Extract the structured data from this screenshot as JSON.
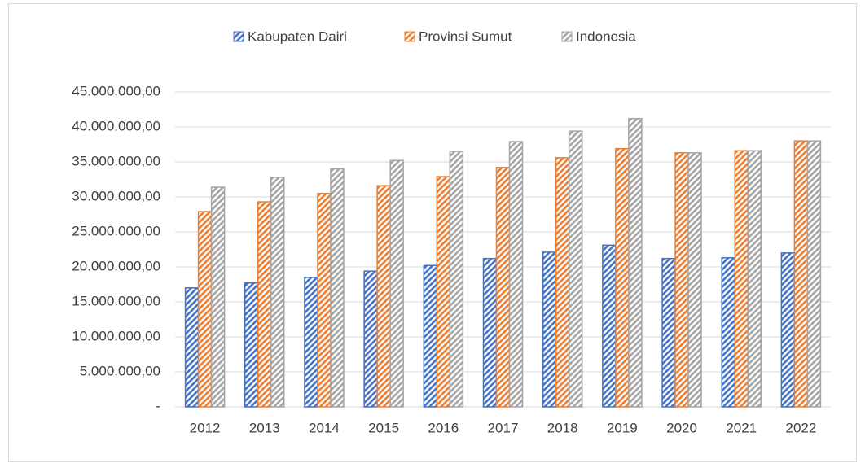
{
  "chart_data": {
    "type": "bar",
    "categories": [
      "2012",
      "2013",
      "2014",
      "2015",
      "2016",
      "2017",
      "2018",
      "2019",
      "2020",
      "2021",
      "2022"
    ],
    "series": [
      {
        "name": "Kabupaten Dairi",
        "color": "#4472c4",
        "values": [
          17000000,
          17700000,
          18500000,
          19400000,
          20200000,
          21200000,
          22100000,
          23100000,
          21200000,
          21300000,
          22000000
        ]
      },
      {
        "name": "Provinsi Sumut",
        "color": "#ed7d31",
        "values": [
          27900000,
          29300000,
          30500000,
          31600000,
          32900000,
          34200000,
          35600000,
          36900000,
          36300000,
          36600000,
          38000000
        ]
      },
      {
        "name": "Indonesia",
        "color": "#a5a5a5",
        "values": [
          31400000,
          32800000,
          34000000,
          35200000,
          36500000,
          37900000,
          39400000,
          41200000,
          36300000,
          36600000,
          38000000
        ]
      }
    ],
    "ylim": [
      0,
      45000000
    ],
    "yticks": [
      {
        "value": 0,
        "label": "-"
      },
      {
        "value": 5000000,
        "label": "5.000.000,00"
      },
      {
        "value": 10000000,
        "label": "10.000.000,00"
      },
      {
        "value": 15000000,
        "label": "15.000.000,00"
      },
      {
        "value": 20000000,
        "label": "20.000.000,00"
      },
      {
        "value": 25000000,
        "label": "25.000.000,00"
      },
      {
        "value": 30000000,
        "label": "30.000.000,00"
      },
      {
        "value": 35000000,
        "label": "35.000.000,00"
      },
      {
        "value": 40000000,
        "label": "40.000.000,00"
      },
      {
        "value": 45000000,
        "label": "45.000.000,00"
      }
    ],
    "grid": true,
    "legend": "top"
  }
}
